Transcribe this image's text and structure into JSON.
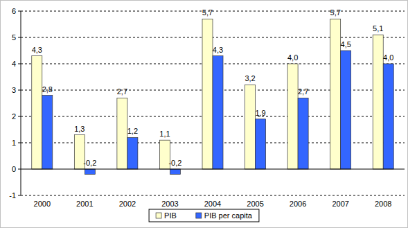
{
  "chart_data": {
    "type": "bar",
    "categories": [
      "2000",
      "2001",
      "2002",
      "2003",
      "2004",
      "2005",
      "2006",
      "2007",
      "2008"
    ],
    "series": [
      {
        "name": "PIB",
        "color": "#ffffcc",
        "values": [
          4.3,
          1.3,
          2.7,
          1.1,
          5.7,
          3.2,
          4.0,
          5.7,
          5.1
        ],
        "value_labels": [
          "4,3",
          "1,3",
          "2,7",
          "1,1",
          "5,7",
          "3,2",
          "4,0",
          "5,7",
          "5,1"
        ]
      },
      {
        "name": "PIB per capita",
        "color": "#3366ff",
        "values": [
          2.8,
          -0.2,
          1.2,
          -0.2,
          4.3,
          1.9,
          2.7,
          4.5,
          4.0
        ],
        "value_labels": [
          "2,8",
          "-0,2",
          "1,2",
          "-0,2",
          "4,3",
          "1,9",
          "2,7",
          "4,5",
          "4,0"
        ]
      }
    ],
    "ylim": [
      -1,
      6
    ],
    "yticks": [
      -1,
      0,
      1,
      2,
      3,
      4,
      5,
      6
    ],
    "grid": true,
    "data_labels": true,
    "legend": "bottom"
  }
}
